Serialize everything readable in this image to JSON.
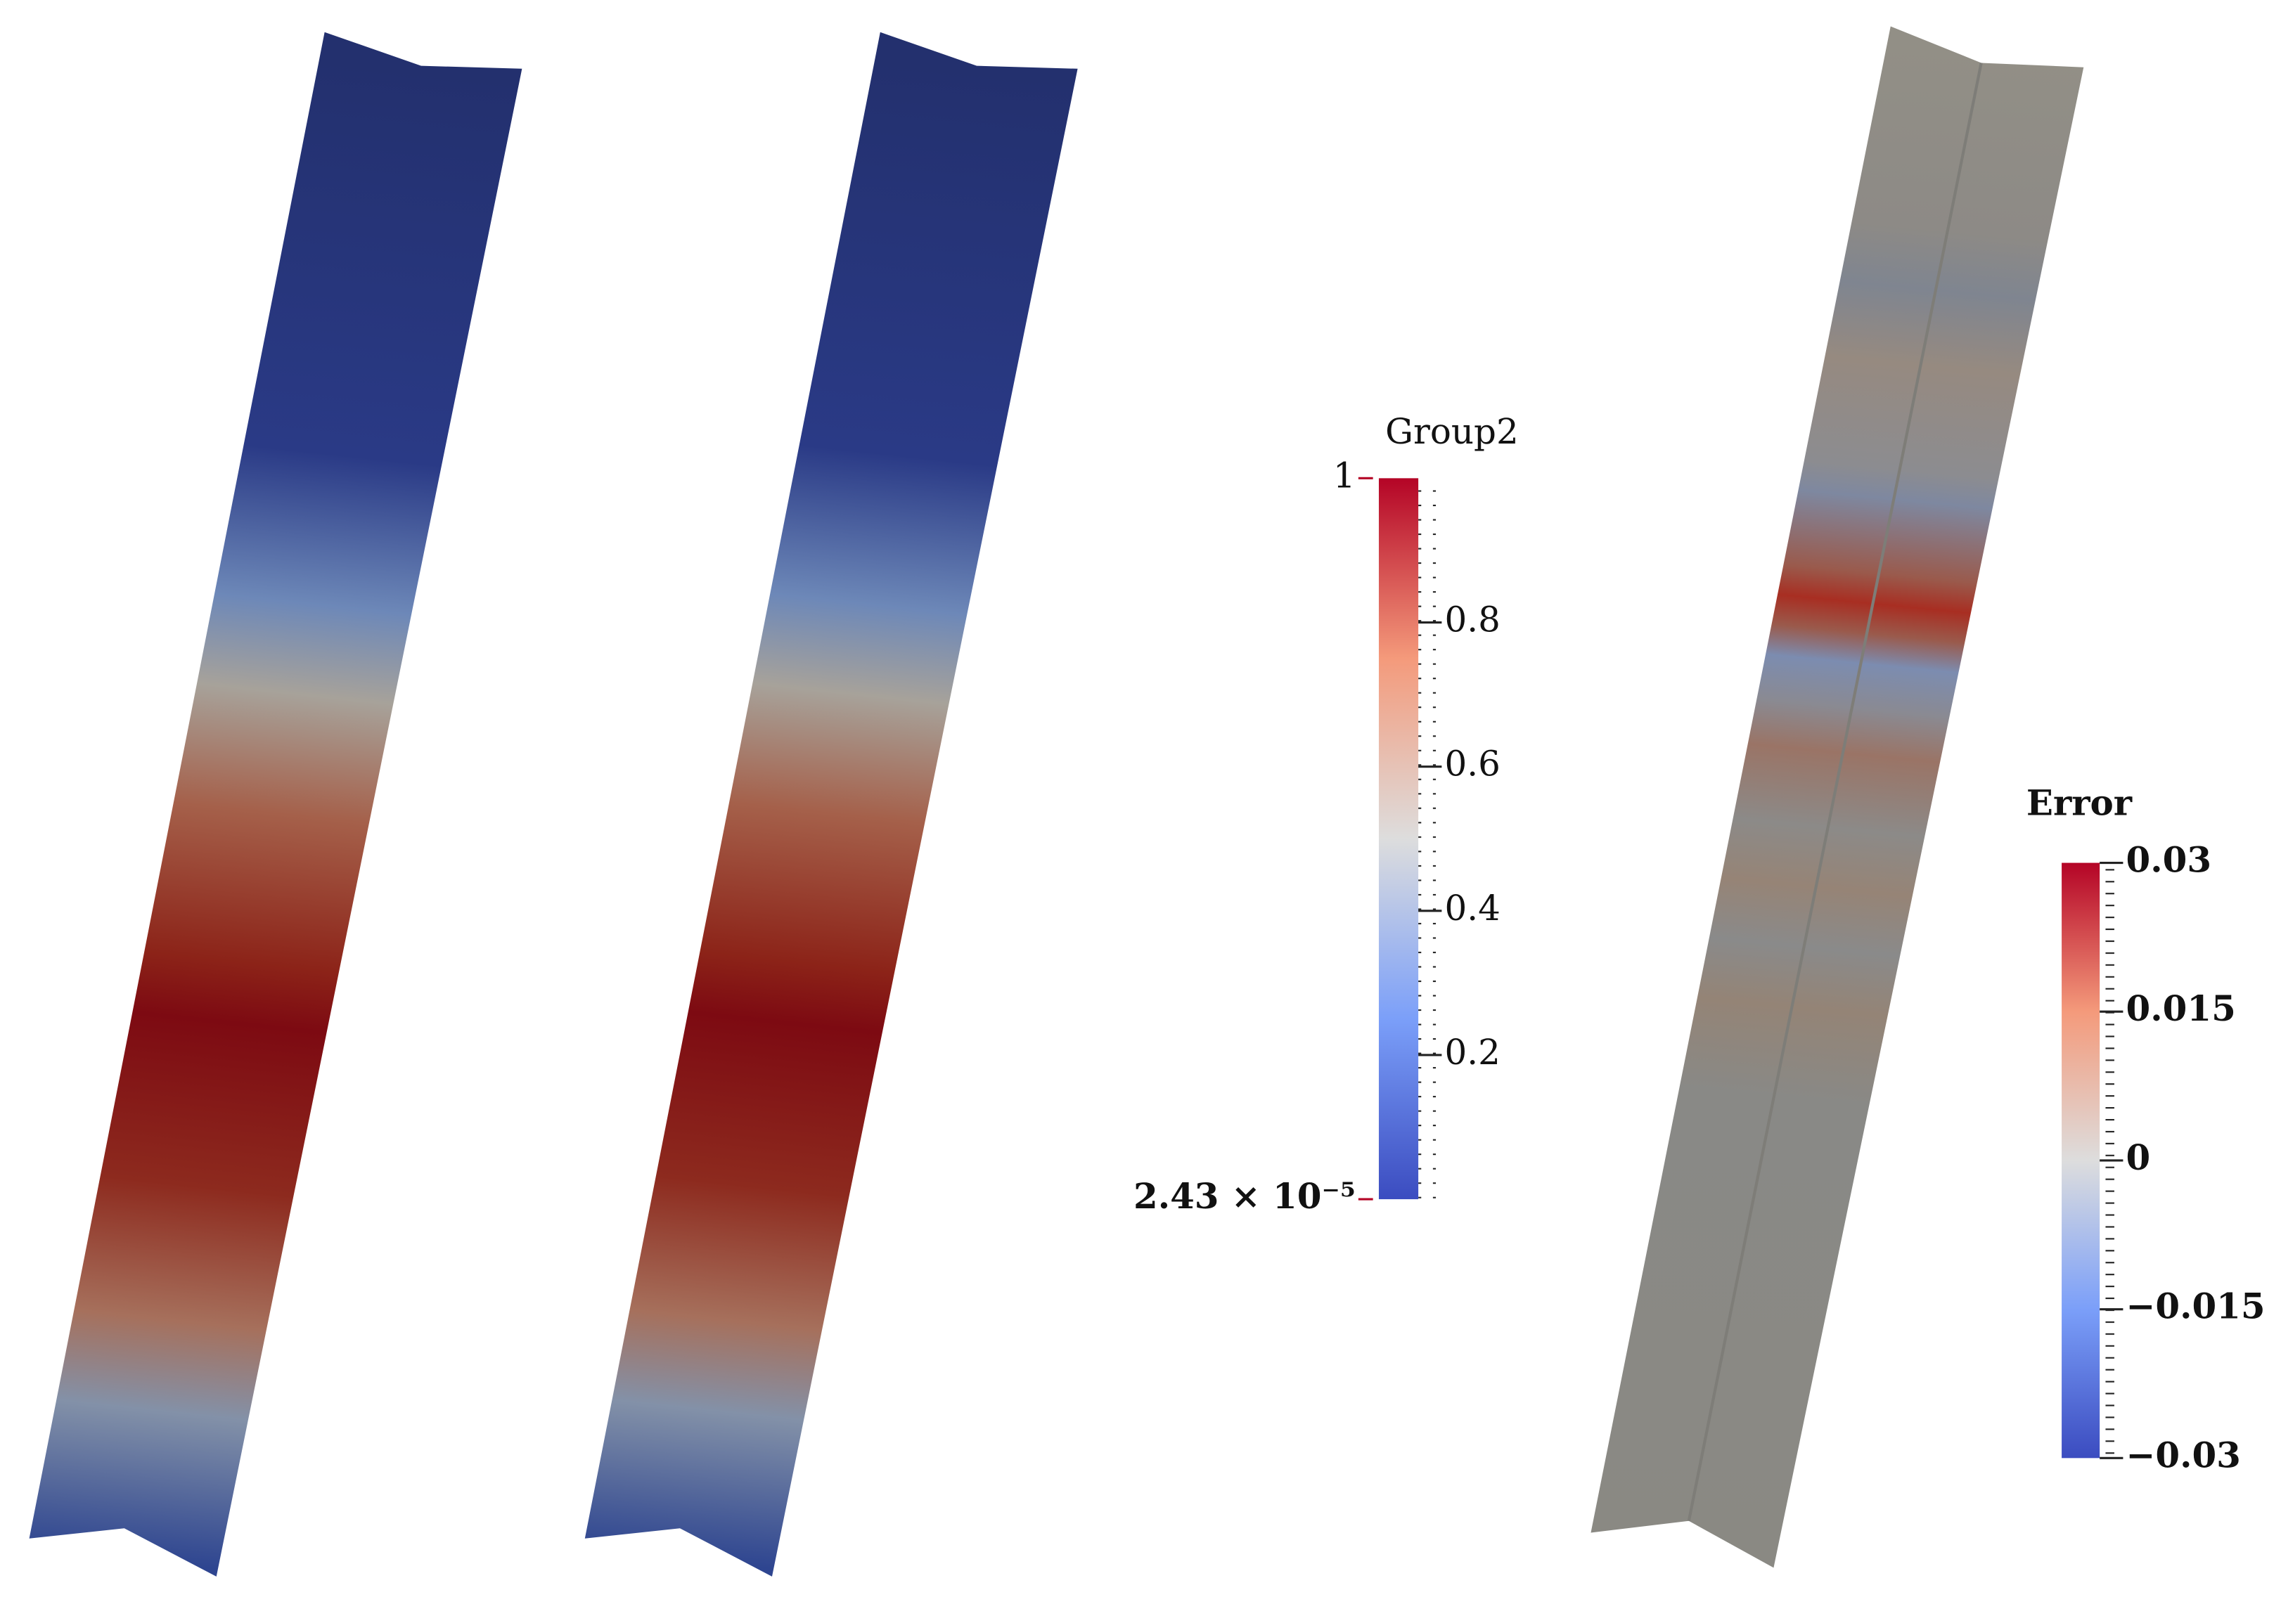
{
  "colorbars": [
    {
      "title": "Group2",
      "range": [
        2.43e-05,
        1
      ],
      "ticks": [
        {
          "value": 2.43e-05,
          "label": "2.43 × 10⁻⁵"
        },
        0.2,
        0.4,
        0.6,
        0.8,
        1
      ]
    },
    {
      "title": "Error",
      "range": [
        -0.03,
        0.03
      ],
      "ticks": [
        {
          "value": -0.03,
          "label": "−0.03"
        },
        {
          "value": -0.015,
          "label": "−0.015"
        },
        0,
        0.015,
        0.03
      ]
    }
  ]
}
